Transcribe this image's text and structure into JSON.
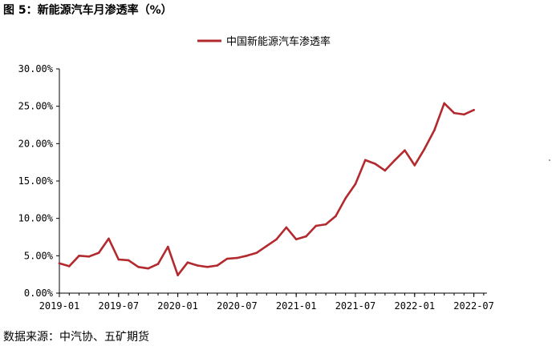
{
  "header": {
    "title": "图 5：新能源汽车月渗透率（%）"
  },
  "footer": {
    "source": "数据来源：中汽协、五矿期货"
  },
  "chart_data": {
    "type": "line",
    "series": [
      {
        "name": "中国新能源汽车渗透率",
        "color": "#b22a2e",
        "x": [
          "2019-01",
          "2019-02",
          "2019-03",
          "2019-04",
          "2019-05",
          "2019-06",
          "2019-07",
          "2019-08",
          "2019-09",
          "2019-10",
          "2019-11",
          "2019-12",
          "2020-01",
          "2020-02",
          "2020-03",
          "2020-04",
          "2020-05",
          "2020-06",
          "2020-07",
          "2020-08",
          "2020-09",
          "2020-10",
          "2020-11",
          "2020-12",
          "2021-01",
          "2021-02",
          "2021-03",
          "2021-04",
          "2021-05",
          "2021-06",
          "2021-07",
          "2021-08",
          "2021-09",
          "2021-10",
          "2021-11",
          "2021-12",
          "2022-01",
          "2022-02",
          "2022-03",
          "2022-04",
          "2022-05",
          "2022-06",
          "2022-07",
          "2022-08"
        ],
        "values": [
          4.0,
          3.6,
          5.0,
          4.9,
          5.4,
          7.3,
          4.5,
          4.4,
          3.5,
          3.3,
          3.9,
          6.2,
          2.4,
          4.1,
          3.7,
          3.5,
          3.7,
          4.6,
          4.7,
          5.0,
          5.4,
          6.3,
          7.2,
          8.8,
          7.2,
          7.6,
          9.0,
          9.2,
          10.3,
          12.7,
          14.6,
          17.8,
          17.3,
          16.4,
          17.8,
          19.1,
          17.1,
          19.3,
          21.8,
          25.4,
          24.1,
          23.9,
          24.5,
          null
        ]
      }
    ],
    "x_ticks": [
      "2019-01",
      "2019-07",
      "2020-01",
      "2020-07",
      "2021-01",
      "2021-07",
      "2022-01",
      "2022-07"
    ],
    "y_ticks": [
      "0.00%",
      "5.00%",
      "10.00%",
      "15.00%",
      "20.00%",
      "25.00%",
      "30.00%"
    ],
    "ylim": [
      0,
      30
    ],
    "grid": false,
    "legend_position": "top-center"
  }
}
